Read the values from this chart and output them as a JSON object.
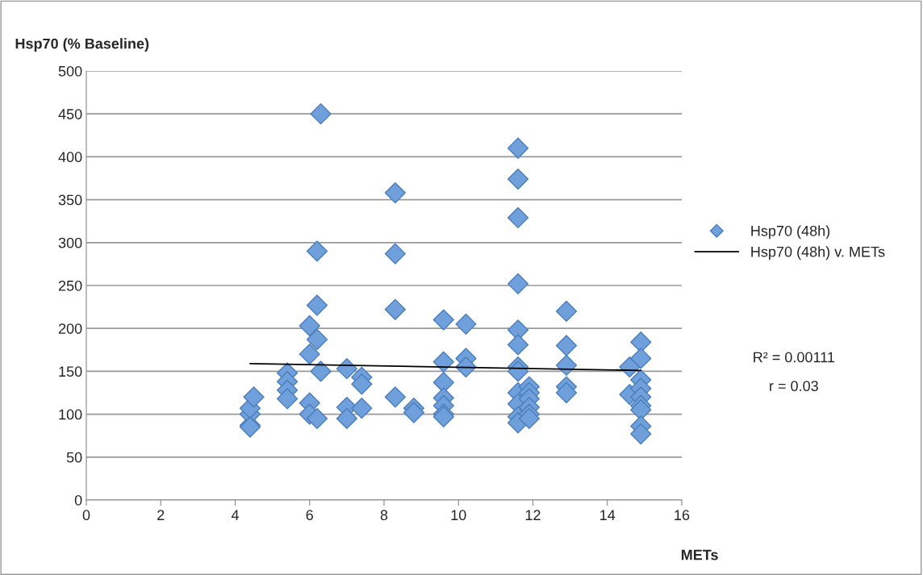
{
  "chart_data": {
    "type": "scatter",
    "xlabel": "METs",
    "ylabel": "Hsp70 (% Baseline)",
    "xlim": [
      0,
      16
    ],
    "xticks": [
      0,
      2,
      4,
      6,
      8,
      10,
      12,
      14,
      16
    ],
    "ylim": [
      0,
      500
    ],
    "yticks": [
      0,
      50,
      100,
      150,
      200,
      250,
      300,
      350,
      400,
      450,
      500
    ],
    "grid": "y",
    "legend": "right",
    "marker": "diamond",
    "annotations": [
      "R² = 0.00111",
      "r = 0.03"
    ],
    "series": [
      {
        "name": "Hsp70 (48h)",
        "color": "#6fa0dc",
        "x": [
          4.4,
          4.4,
          4.4,
          4.5,
          4.4,
          5.4,
          5.4,
          5.4,
          5.4,
          6.0,
          6.0,
          6.0,
          6.0,
          6.2,
          6.2,
          6.2,
          6.2,
          6.3,
          6.3,
          7.0,
          7.0,
          7.0,
          7.4,
          7.4,
          7.4,
          8.3,
          8.3,
          8.3,
          8.3,
          8.8,
          8.8,
          9.6,
          9.6,
          9.6,
          9.6,
          9.6,
          9.6,
          9.6,
          10.2,
          10.2,
          10.2,
          11.6,
          11.6,
          11.6,
          11.6,
          11.6,
          11.6,
          11.6,
          11.6,
          11.6,
          11.6,
          11.6,
          11.6,
          11.9,
          11.9,
          11.9,
          11.9,
          11.9,
          11.9,
          12.9,
          12.9,
          12.9,
          12.9,
          12.9,
          14.6,
          14.6,
          14.9,
          14.9,
          14.9,
          14.9,
          14.9,
          14.9,
          14.9,
          14.9,
          14.9
        ],
        "values": [
          87,
          100,
          107,
          120,
          85,
          148,
          138,
          128,
          118,
          203,
          170,
          113,
          100,
          290,
          227,
          187,
          95,
          450,
          150,
          153,
          108,
          95,
          143,
          135,
          107,
          358,
          287,
          222,
          120,
          107,
          102,
          210,
          161,
          137,
          119,
          110,
          100,
          97,
          205,
          165,
          155,
          410,
          374,
          329,
          252,
          198,
          181,
          155,
          150,
          125,
          112,
          97,
          90,
          132,
          125,
          118,
          108,
          100,
          95,
          220,
          180,
          157,
          132,
          125,
          155,
          123,
          184,
          165,
          140,
          130,
          120,
          110,
          105,
          86,
          77
        ]
      },
      {
        "name": "Hsp70 (48h) v. METs",
        "color": "#000000",
        "type": "line",
        "marker": "none",
        "x": [
          4.4,
          14.9
        ],
        "values": [
          159,
          151
        ]
      }
    ]
  }
}
